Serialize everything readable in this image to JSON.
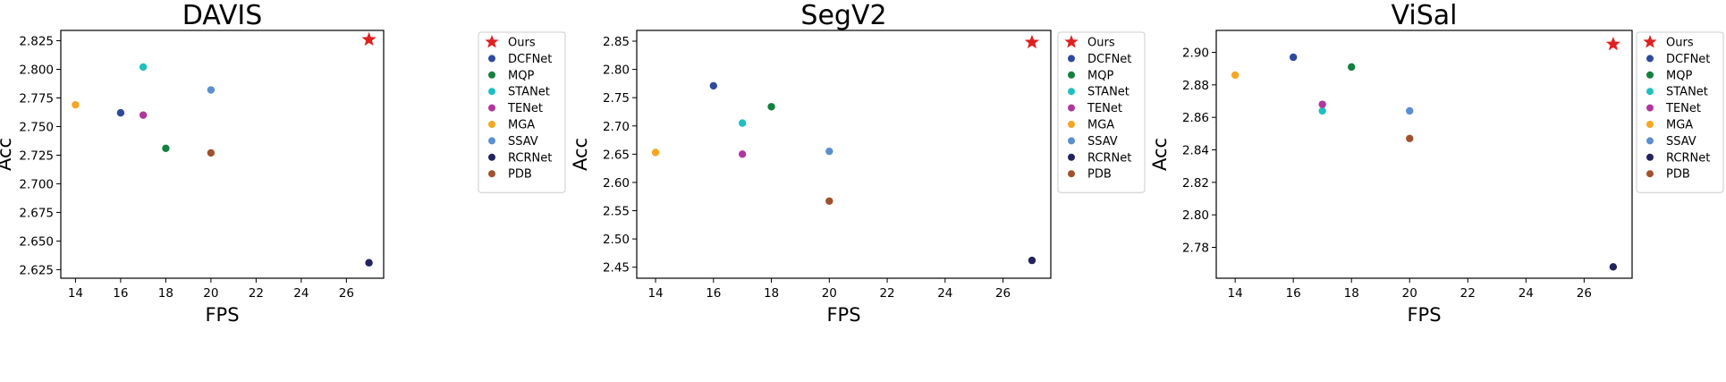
{
  "chart_data": [
    {
      "type": "scatter",
      "title": "DAVIS",
      "xlabel": "FPS",
      "ylabel": "Acc",
      "xlim": [
        13.35,
        27.65
      ],
      "ylim": [
        2.6175,
        2.834
      ],
      "xticks": [
        14,
        16,
        18,
        20,
        22,
        24,
        26
      ],
      "yticks": [
        2.625,
        2.65,
        2.675,
        2.7,
        2.725,
        2.75,
        2.775,
        2.8,
        2.825
      ],
      "ytick_labels": [
        "2.625",
        "2.650",
        "2.675",
        "2.700",
        "2.725",
        "2.750",
        "2.775",
        "2.800",
        "2.825"
      ],
      "grid": false,
      "legend": "outside-upper-right",
      "series": [
        {
          "name": "Ours",
          "marker": "star",
          "color": "#e02020",
          "x": 27,
          "y": 2.826
        },
        {
          "name": "DCFNet",
          "marker": "circle",
          "color": "#2f4a9c",
          "x": 16,
          "y": 2.762
        },
        {
          "name": "MQP",
          "marker": "circle",
          "color": "#138040",
          "x": 18,
          "y": 2.731
        },
        {
          "name": "STANet",
          "marker": "circle",
          "color": "#1fbfbf",
          "x": 17,
          "y": 2.802
        },
        {
          "name": "TENet",
          "marker": "circle",
          "color": "#b0379e",
          "x": 17,
          "y": 2.76
        },
        {
          "name": "MGA",
          "marker": "circle",
          "color": "#f5a623",
          "x": 14,
          "y": 2.769
        },
        {
          "name": "SSAV",
          "marker": "circle",
          "color": "#5b8fd0",
          "x": 20,
          "y": 2.782
        },
        {
          "name": "RCRNet",
          "marker": "circle",
          "color": "#23235e",
          "x": 27,
          "y": 2.631
        },
        {
          "name": "PDB",
          "marker": "circle",
          "color": "#a0522d",
          "x": 20,
          "y": 2.727
        }
      ]
    },
    {
      "type": "scatter",
      "title": "SegV2",
      "xlabel": "FPS",
      "ylabel": "Acc",
      "xlim": [
        13.35,
        27.65
      ],
      "ylim": [
        2.4305,
        2.869
      ],
      "xticks": [
        14,
        16,
        18,
        20,
        22,
        24,
        26
      ],
      "yticks": [
        2.45,
        2.5,
        2.55,
        2.6,
        2.65,
        2.7,
        2.75,
        2.8,
        2.85
      ],
      "ytick_labels": [
        "2.45",
        "2.50",
        "2.55",
        "2.60",
        "2.65",
        "2.70",
        "2.75",
        "2.80",
        "2.85"
      ],
      "grid": false,
      "legend": "outside-upper-right",
      "series": [
        {
          "name": "Ours",
          "marker": "star",
          "color": "#e02020",
          "x": 27,
          "y": 2.848
        },
        {
          "name": "DCFNet",
          "marker": "circle",
          "color": "#2f4a9c",
          "x": 16,
          "y": 2.771
        },
        {
          "name": "MQP",
          "marker": "circle",
          "color": "#138040",
          "x": 18,
          "y": 2.734
        },
        {
          "name": "STANet",
          "marker": "circle",
          "color": "#1fbfbf",
          "x": 17,
          "y": 2.705
        },
        {
          "name": "TENet",
          "marker": "circle",
          "color": "#b0379e",
          "x": 17,
          "y": 2.65
        },
        {
          "name": "MGA",
          "marker": "circle",
          "color": "#f5a623",
          "x": 14,
          "y": 2.653
        },
        {
          "name": "SSAV",
          "marker": "circle",
          "color": "#5b8fd0",
          "x": 20,
          "y": 2.655
        },
        {
          "name": "RCRNet",
          "marker": "circle",
          "color": "#23235e",
          "x": 27,
          "y": 2.462
        },
        {
          "name": "PDB",
          "marker": "circle",
          "color": "#a0522d",
          "x": 20,
          "y": 2.567
        }
      ]
    },
    {
      "type": "scatter",
      "title": "ViSal",
      "xlabel": "FPS",
      "ylabel": "Acc",
      "xlim": [
        13.35,
        27.65
      ],
      "ylim": [
        2.761,
        2.9135
      ],
      "xticks": [
        14,
        16,
        18,
        20,
        22,
        24,
        26
      ],
      "yticks": [
        2.78,
        2.8,
        2.82,
        2.84,
        2.86,
        2.88,
        2.9
      ],
      "ytick_labels": [
        "2.78",
        "2.80",
        "2.82",
        "2.84",
        "2.86",
        "2.88",
        "2.90"
      ],
      "grid": false,
      "legend": "outside-upper-right",
      "series": [
        {
          "name": "Ours",
          "marker": "star",
          "color": "#e02020",
          "x": 27,
          "y": 2.905
        },
        {
          "name": "DCFNet",
          "marker": "circle",
          "color": "#2f4a9c",
          "x": 16,
          "y": 2.897
        },
        {
          "name": "MQP",
          "marker": "circle",
          "color": "#138040",
          "x": 18,
          "y": 2.891
        },
        {
          "name": "STANet",
          "marker": "circle",
          "color": "#1fbfbf",
          "x": 17,
          "y": 2.864
        },
        {
          "name": "TENet",
          "marker": "circle",
          "color": "#b0379e",
          "x": 17,
          "y": 2.868
        },
        {
          "name": "MGA",
          "marker": "circle",
          "color": "#f5a623",
          "x": 14,
          "y": 2.886
        },
        {
          "name": "SSAV",
          "marker": "circle",
          "color": "#5b8fd0",
          "x": 20,
          "y": 2.864
        },
        {
          "name": "RCRNet",
          "marker": "circle",
          "color": "#23235e",
          "x": 27,
          "y": 2.768
        },
        {
          "name": "PDB",
          "marker": "circle",
          "color": "#a0522d",
          "x": 20,
          "y": 2.847
        }
      ]
    }
  ]
}
